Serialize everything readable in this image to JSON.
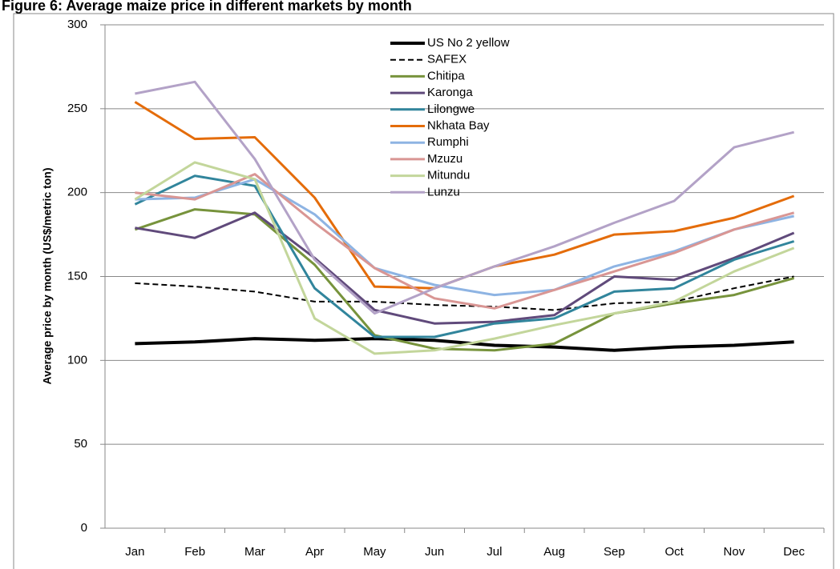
{
  "chart_data": {
    "type": "line",
    "title": "Figure 6: Average maize price in different markets by month",
    "y_label": "Average price by month (US$/metric ton)",
    "categories": [
      "Jan",
      "Feb",
      "Mar",
      "Apr",
      "May",
      "Jun",
      "Jul",
      "Aug",
      "Sep",
      "Oct",
      "Nov",
      "Dec"
    ],
    "ylim": [
      0,
      300
    ],
    "yticks": [
      0,
      50,
      100,
      150,
      200,
      250,
      300
    ],
    "grid": true,
    "legend": "top",
    "series": [
      {
        "name": "US No 2 yellow",
        "color": "#000000",
        "style": "solid",
        "linewidth": 4,
        "values": [
          110,
          111,
          113,
          112,
          113,
          112,
          109,
          108,
          106,
          108,
          109,
          111
        ]
      },
      {
        "name": "SAFEX",
        "color": "#000000",
        "style": "dashed",
        "linewidth": 2,
        "values": [
          146,
          144,
          141,
          135,
          135,
          133,
          132,
          130,
          134,
          135,
          143,
          150
        ]
      },
      {
        "name": "Chitipa",
        "color": "#77933c",
        "style": "solid",
        "linewidth": 3,
        "values": [
          178,
          190,
          187,
          157,
          115,
          107,
          106,
          110,
          128,
          134,
          139,
          149
        ]
      },
      {
        "name": "Karonga",
        "color": "#604a7b",
        "style": "solid",
        "linewidth": 3,
        "values": [
          179,
          173,
          188,
          161,
          130,
          122,
          123,
          127,
          150,
          148,
          161,
          176
        ]
      },
      {
        "name": "Lilongwe",
        "color": "#31859c",
        "style": "solid",
        "linewidth": 3,
        "values": [
          193,
          210,
          204,
          143,
          114,
          114,
          122,
          125,
          141,
          143,
          160,
          171
        ]
      },
      {
        "name": "Nkhata Bay",
        "color": "#e46c0a",
        "style": "solid",
        "linewidth": 3,
        "values": [
          254,
          232,
          233,
          197,
          144,
          143,
          156,
          163,
          175,
          177,
          185,
          198
        ]
      },
      {
        "name": "Rumphi",
        "color": "#8eb4e3",
        "style": "solid",
        "linewidth": 3,
        "values": [
          196,
          197,
          208,
          187,
          155,
          145,
          139,
          142,
          156,
          165,
          178,
          186
        ]
      },
      {
        "name": "Mzuzu",
        "color": "#d99694",
        "style": "solid",
        "linewidth": 3,
        "values": [
          200,
          196,
          211,
          182,
          155,
          137,
          131,
          142,
          153,
          164,
          178,
          188
        ]
      },
      {
        "name": "Mitundu",
        "color": "#c3d69b",
        "style": "solid",
        "linewidth": 3,
        "values": [
          196,
          218,
          208,
          125,
          104,
          106,
          113,
          121,
          128,
          135,
          153,
          167
        ]
      },
      {
        "name": "Lunzu",
        "color": "#b3a2c7",
        "style": "solid",
        "linewidth": 3,
        "values": [
          259,
          266,
          220,
          160,
          128,
          143,
          156,
          168,
          182,
          195,
          227,
          236
        ]
      }
    ]
  }
}
